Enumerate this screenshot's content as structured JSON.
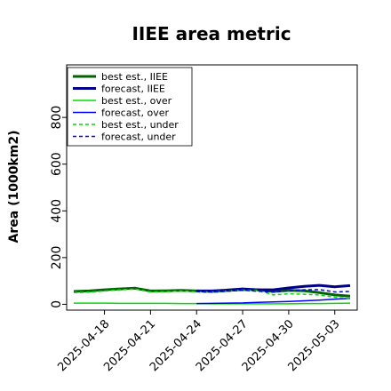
{
  "chart_data": {
    "type": "line",
    "title": "IIEE area metric",
    "xlabel": "",
    "ylabel": "Area (1000km2)",
    "ylim": [
      -25,
      1025
    ],
    "yticks": [
      0,
      200,
      400,
      600,
      800
    ],
    "x": [
      "2025-04-16",
      "2025-04-17",
      "2025-04-18",
      "2025-04-19",
      "2025-04-20",
      "2025-04-21",
      "2025-04-22",
      "2025-04-23",
      "2025-04-24",
      "2025-04-25",
      "2025-04-26",
      "2025-04-27",
      "2025-04-28",
      "2025-04-29",
      "2025-04-30",
      "2025-05-01",
      "2025-05-02",
      "2025-05-03",
      "2025-05-04"
    ],
    "xticks": [
      "2025-04-18",
      "2025-04-21",
      "2025-04-24",
      "2025-04-27",
      "2025-04-30",
      "2025-05-03"
    ],
    "highlighted_xtick": "2025-04-24",
    "highlight_color": "#228b22",
    "grid": false,
    "legend_position": "top-left",
    "series": [
      {
        "name": "best est., IIEE",
        "color": "#006400",
        "style": "solid",
        "weight": "thick",
        "values": [
          55,
          57,
          62,
          66,
          69,
          57,
          58,
          60,
          57,
          55,
          59,
          63,
          62,
          55,
          60,
          58,
          50,
          40,
          35
        ]
      },
      {
        "name": "forecast, IIEE",
        "color": "#00008b",
        "style": "solid",
        "weight": "thick",
        "values": [
          null,
          null,
          null,
          null,
          null,
          null,
          null,
          null,
          57,
          57,
          61,
          66,
          62,
          62,
          70,
          77,
          81,
          75,
          80
        ]
      },
      {
        "name": "best est., over",
        "color": "#00dd00",
        "style": "solid",
        "weight": "thin",
        "values": [
          5,
          5,
          5,
          4,
          4,
          4,
          4,
          3,
          3,
          2,
          2,
          2,
          2,
          2,
          2,
          3,
          3,
          4,
          5
        ]
      },
      {
        "name": "forecast, over",
        "color": "#0000ff",
        "style": "solid",
        "weight": "thin",
        "values": [
          null,
          null,
          null,
          null,
          null,
          null,
          null,
          null,
          3,
          4,
          5,
          6,
          8,
          10,
          12,
          15,
          18,
          22,
          25
        ]
      },
      {
        "name": "best est., under",
        "color": "#00dd00",
        "style": "dashed",
        "weight": "thin",
        "values": [
          50,
          52,
          57,
          62,
          65,
          53,
          54,
          57,
          54,
          53,
          57,
          61,
          60,
          40,
          45,
          43,
          40,
          30,
          25
        ]
      },
      {
        "name": "forecast, under",
        "color": "#0000ff",
        "style": "dashed",
        "weight": "thin",
        "values": [
          null,
          null,
          null,
          null,
          null,
          null,
          null,
          null,
          54,
          52,
          56,
          60,
          56,
          52,
          58,
          62,
          63,
          53,
          55
        ]
      }
    ]
  }
}
